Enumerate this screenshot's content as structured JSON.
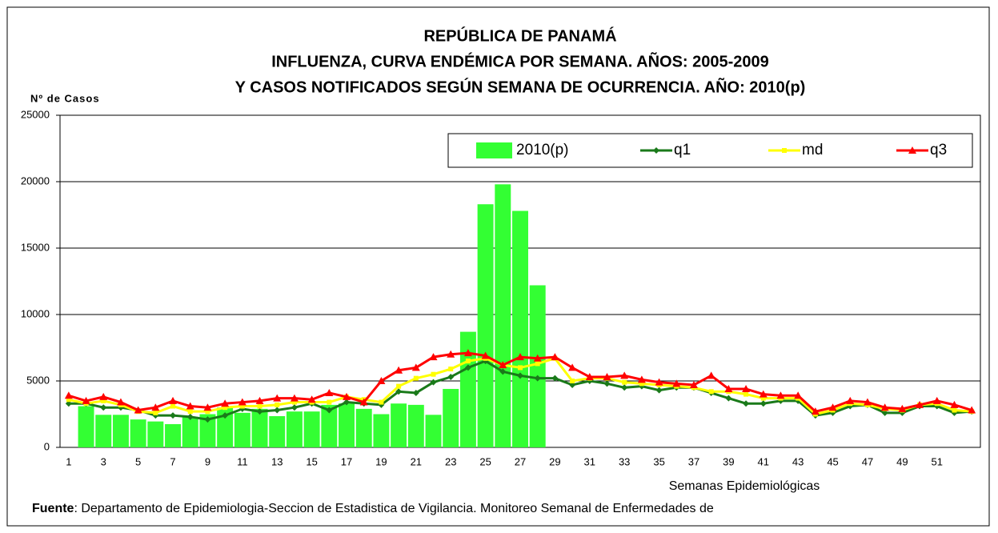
{
  "chart_data": {
    "type": "bar-line",
    "title": [
      "REPÚBLICA DE PANAMÁ",
      "INFLUENZA, CURVA ENDÉMICA POR SEMANA.  AÑOS: 2005-2009",
      "Y CASOS NOTIFICADOS SEGÚN SEMANA DE OCURRENCIA.  AÑO: 2010(p)"
    ],
    "y_label": "Nº de Casos",
    "x_label": "Semanas Epidemiológicas",
    "source_label": "Fuente",
    "source_text": ": Departamento de Epidemiologia-Seccion de Estadistica de Vigilancia. Monitoreo Semanal de Enfermedades de",
    "categories": [
      "1",
      null,
      "3",
      null,
      "5",
      null,
      "7",
      null,
      "9",
      null,
      "11",
      null,
      "13",
      null,
      "15",
      null,
      "17",
      null,
      "19",
      null,
      "21",
      null,
      "23",
      null,
      "25",
      null,
      "27",
      null,
      "29",
      null,
      "31",
      null,
      "33",
      null,
      "35",
      null,
      "37",
      null,
      "39",
      null,
      "41",
      null,
      "43",
      null,
      "45",
      null,
      "47",
      null,
      "49",
      null,
      "51",
      null,
      null
    ],
    "ylim": [
      0,
      25000
    ],
    "yticks": [
      0,
      5000,
      10000,
      15000,
      20000,
      25000
    ],
    "grid": true,
    "series": [
      {
        "name": "2010(p)",
        "type": "bar",
        "color": "#33ff33",
        "values": [
          null,
          3100,
          2450,
          2450,
          2100,
          1950,
          1750,
          2300,
          2500,
          3000,
          2600,
          2900,
          2350,
          2700,
          2700,
          3200,
          3300,
          2900,
          2500,
          3300,
          3200,
          2450,
          4400,
          8700,
          18300,
          19800,
          17800,
          12200,
          null,
          null,
          null,
          null,
          null,
          null,
          null,
          null,
          null,
          null,
          null,
          null,
          null,
          null,
          null,
          null,
          null,
          null,
          null,
          null,
          null,
          null,
          null,
          null,
          null
        ]
      },
      {
        "name": "q1",
        "type": "line",
        "color": "#1a7a1a",
        "marker": "diamond",
        "values": [
          3300,
          3300,
          3000,
          3000,
          2800,
          2400,
          2400,
          2300,
          2100,
          2400,
          2900,
          2700,
          2800,
          3000,
          3300,
          2800,
          3400,
          3300,
          3200,
          4200,
          4100,
          4900,
          5300,
          6000,
          6500,
          5700,
          5400,
          5200,
          5200,
          4700,
          5000,
          4800,
          4500,
          4600,
          4300,
          4500,
          4500,
          4100,
          3700,
          3300,
          3300,
          3500,
          3500,
          2400,
          2600,
          3100,
          3200,
          2600,
          2600,
          3100,
          3100,
          2600,
          2700
        ]
      },
      {
        "name": "md",
        "type": "line",
        "color": "#ffff00",
        "marker": "square",
        "values": [
          3600,
          3300,
          3500,
          3200,
          2700,
          2600,
          3100,
          2700,
          2700,
          3000,
          3100,
          3100,
          3200,
          3400,
          3400,
          3400,
          3800,
          3600,
          3400,
          4600,
          5200,
          5500,
          5900,
          6500,
          6700,
          6200,
          6000,
          6300,
          6700,
          5000,
          5200,
          5200,
          4900,
          4800,
          4700,
          4600,
          4500,
          4200,
          4200,
          4000,
          3700,
          3700,
          3700,
          2500,
          2800,
          3300,
          3200,
          2900,
          2800,
          3200,
          3300,
          2800,
          2700
        ]
      },
      {
        "name": "q3",
        "type": "line",
        "color": "#ff0000",
        "marker": "triangle",
        "values": [
          3900,
          3500,
          3800,
          3400,
          2800,
          3000,
          3500,
          3100,
          3000,
          3300,
          3400,
          3500,
          3700,
          3700,
          3600,
          4100,
          3800,
          3400,
          5000,
          5800,
          6000,
          6800,
          7000,
          7100,
          6900,
          6200,
          6800,
          6700,
          6800,
          6000,
          5300,
          5300,
          5400,
          5100,
          4900,
          4800,
          4700,
          5400,
          4400,
          4400,
          4000,
          3900,
          3900,
          2700,
          3000,
          3500,
          3400,
          3000,
          2900,
          3200,
          3500,
          3200,
          2800
        ]
      }
    ]
  }
}
